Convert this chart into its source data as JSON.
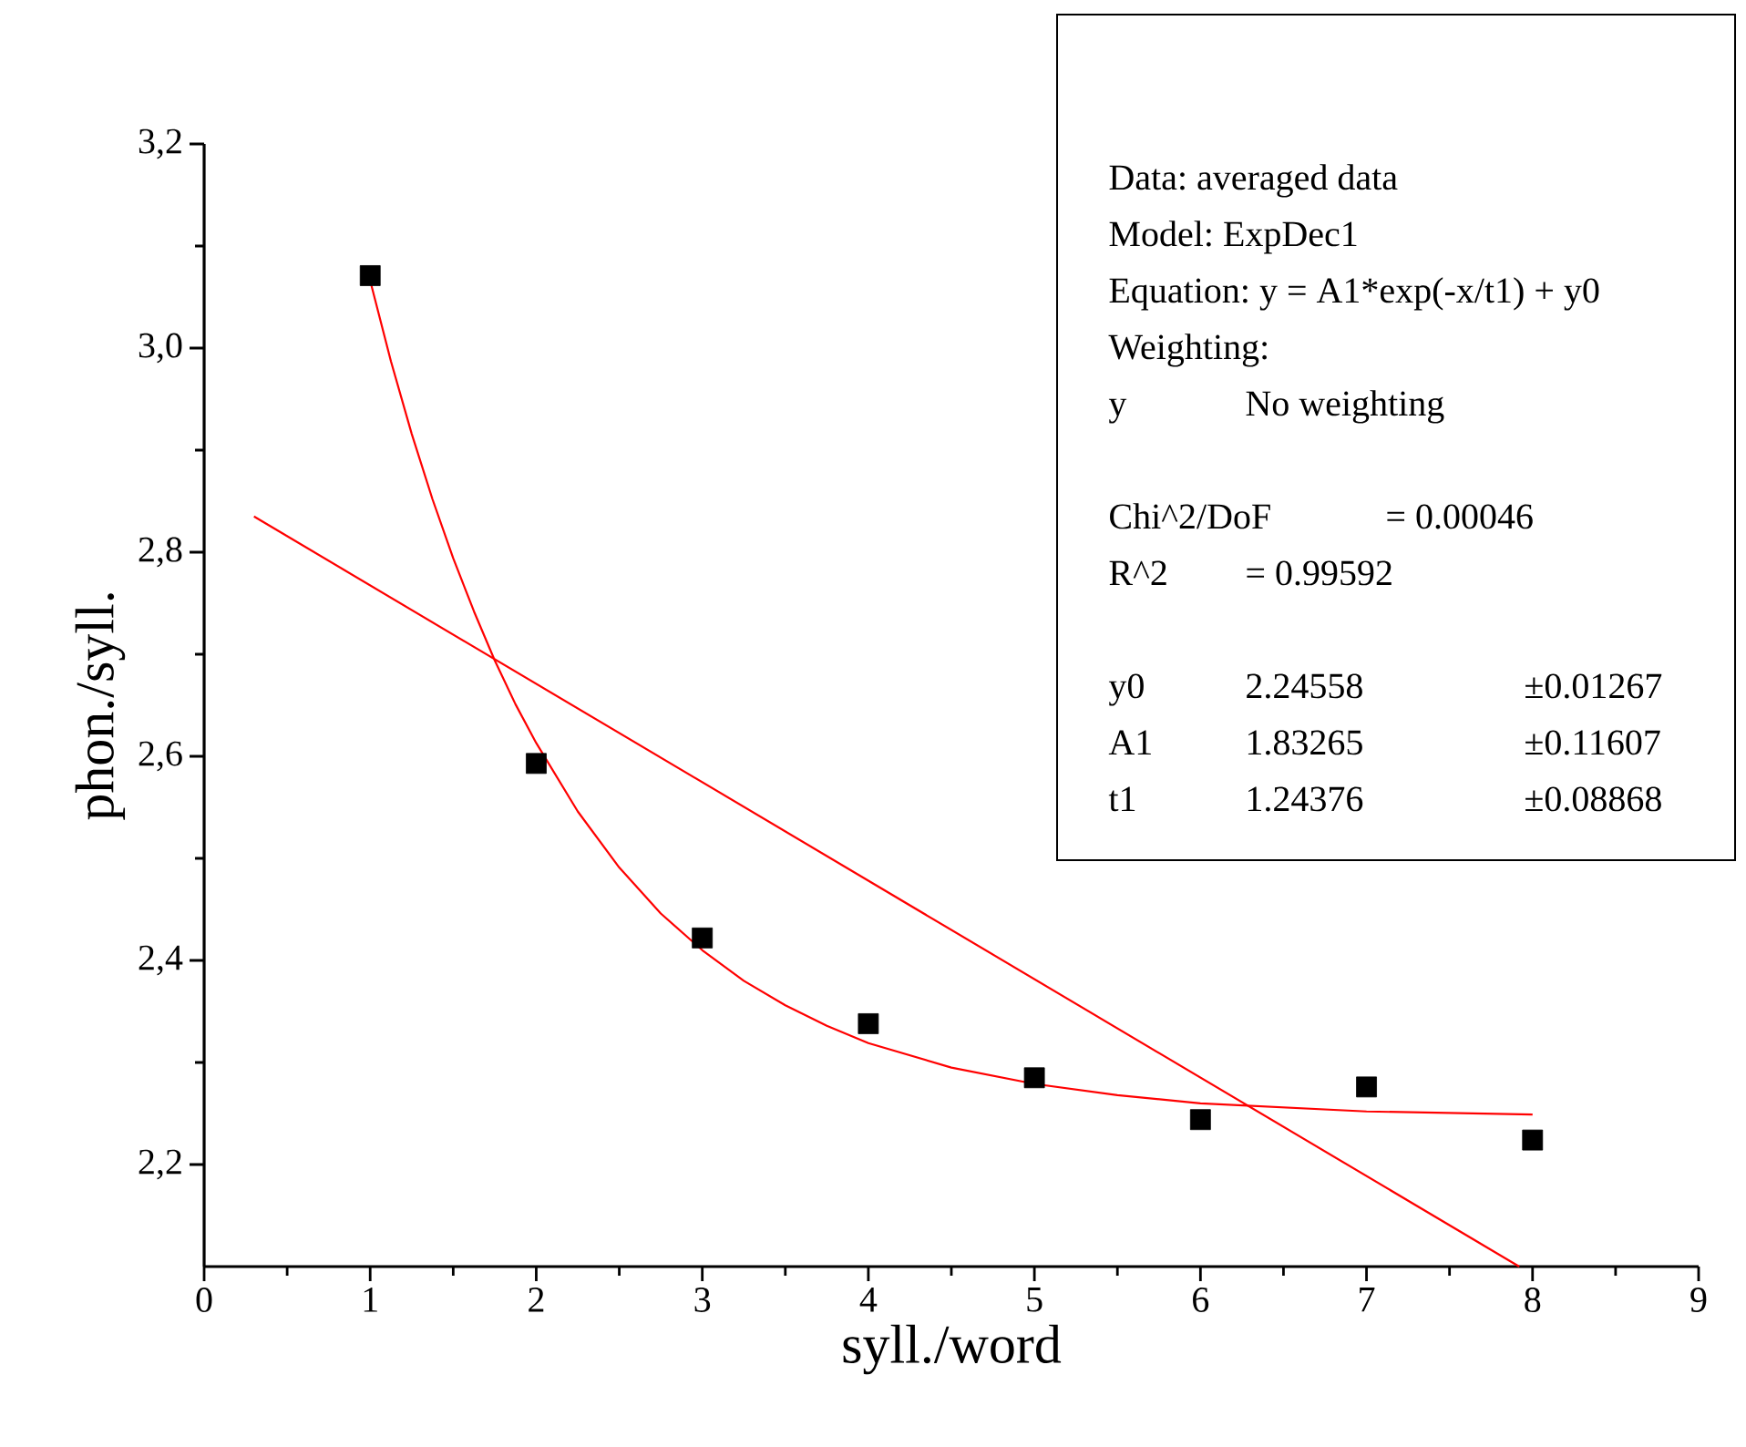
{
  "chart_data": {
    "type": "scatter",
    "xlabel": "syll./word",
    "ylabel": "phon./syll.",
    "xlim": [
      0,
      9
    ],
    "xticks": [
      0,
      1,
      2,
      3,
      4,
      5,
      6,
      7,
      8,
      9
    ],
    "ylim": [
      2.1,
      3.2
    ],
    "yticks": [
      {
        "value": 2.2,
        "label": "2,2"
      },
      {
        "value": 2.4,
        "label": "2,4"
      },
      {
        "value": 2.6,
        "label": "2,6"
      },
      {
        "value": 2.8,
        "label": "2,8"
      },
      {
        "value": 3.0,
        "label": "3,0"
      },
      {
        "value": 3.2,
        "label": "3,2"
      }
    ],
    "grid": false,
    "series": [
      {
        "marker": "square",
        "color": "#000000",
        "x": [
          1,
          2,
          3,
          4,
          5,
          6,
          7,
          8
        ],
        "values": [
          3.071,
          2.593,
          2.422,
          2.338,
          2.285,
          2.244,
          2.276,
          2.224
        ]
      },
      {
        "type": "line",
        "marker": "none",
        "color": "#ff0000",
        "x": [
          1,
          1.125,
          1.25,
          1.375,
          1.5,
          1.625,
          1.75,
          1.875,
          2,
          2.25,
          2.5,
          2.75,
          3,
          3.25,
          3.5,
          3.75,
          4,
          4.5,
          5,
          5.5,
          6,
          7,
          8
        ],
        "values": [
          3.066,
          2.987,
          2.916,
          2.852,
          2.794,
          2.742,
          2.694,
          2.651,
          2.613,
          2.546,
          2.491,
          2.446,
          2.41,
          2.38,
          2.356,
          2.336,
          2.319,
          2.295,
          2.279,
          2.268,
          2.26,
          2.252,
          2.249
        ]
      },
      {
        "type": "line",
        "marker": "none",
        "color": "#ff0000",
        "x": [
          0.3,
          7.92
        ],
        "values": [
          2.835,
          2.1
        ]
      }
    ],
    "annotations": [
      "Data: averaged data",
      "Model: ExpDec1",
      "Equation: y = A1*exp(-x/t1) + y0",
      "Weighting:",
      "y",
      "No weighting",
      "Chi^2/DoF",
      "= 0.00046",
      "R^2",
      "=  0.99592",
      "y0",
      "2.24558",
      "±0.01267",
      "A1",
      "1.83265",
      "±0.11607",
      "t1",
      "1.24376",
      "±0.08868"
    ]
  }
}
